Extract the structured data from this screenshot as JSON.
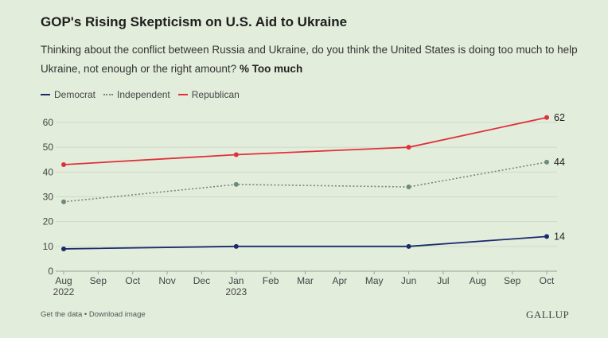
{
  "header": {
    "title": "GOP's Rising Skepticism on U.S. Aid to Ukraine",
    "subtitle": "Thinking about the conflict between Russia and Ukraine, do you think the United States is doing too much to help Ukraine, not enough or the right amount?",
    "subtitle_emphasis": "% Too much"
  },
  "footer": {
    "links": "Get the data • Download image",
    "brand": "GALLUP"
  },
  "chart_data": {
    "type": "line",
    "title": "GOP's Rising Skepticism on U.S. Aid to Ukraine",
    "xlabel": "",
    "ylabel": "",
    "ylim": [
      0,
      60
    ],
    "yticks": [
      0,
      10,
      20,
      30,
      40,
      50,
      60
    ],
    "x_range": [
      "2022-08",
      "2023-10"
    ],
    "xticks": [
      {
        "month": "2022-08",
        "label": "Aug",
        "sublabel": "2022"
      },
      {
        "month": "2022-09",
        "label": "Sep"
      },
      {
        "month": "2022-10",
        "label": "Oct"
      },
      {
        "month": "2022-11",
        "label": "Nov"
      },
      {
        "month": "2022-12",
        "label": "Dec"
      },
      {
        "month": "2023-01",
        "label": "Jan",
        "sublabel": "2023"
      },
      {
        "month": "2023-02",
        "label": "Feb"
      },
      {
        "month": "2023-03",
        "label": "Mar"
      },
      {
        "month": "2023-04",
        "label": "Apr"
      },
      {
        "month": "2023-05",
        "label": "May"
      },
      {
        "month": "2023-06",
        "label": "Jun"
      },
      {
        "month": "2023-07",
        "label": "Jul"
      },
      {
        "month": "2023-08",
        "label": "Aug"
      },
      {
        "month": "2023-09",
        "label": "Sep"
      },
      {
        "month": "2023-10",
        "label": "Oct"
      }
    ],
    "x": [
      "2022-08",
      "2023-01",
      "2023-06",
      "2023-10"
    ],
    "grid": true,
    "legend_position": "top-left",
    "series": [
      {
        "name": "Democrat",
        "color": "#1a2a6c",
        "style": "solid",
        "values": [
          9,
          10,
          10,
          14
        ],
        "end_label": "14"
      },
      {
        "name": "Independent",
        "color": "#6e8a7e",
        "style": "dotted",
        "values": [
          28,
          35,
          34,
          44
        ],
        "end_label": "44"
      },
      {
        "name": "Republican",
        "color": "#e0303a",
        "style": "solid",
        "values": [
          43,
          47,
          50,
          62
        ],
        "end_label": "62"
      }
    ]
  }
}
